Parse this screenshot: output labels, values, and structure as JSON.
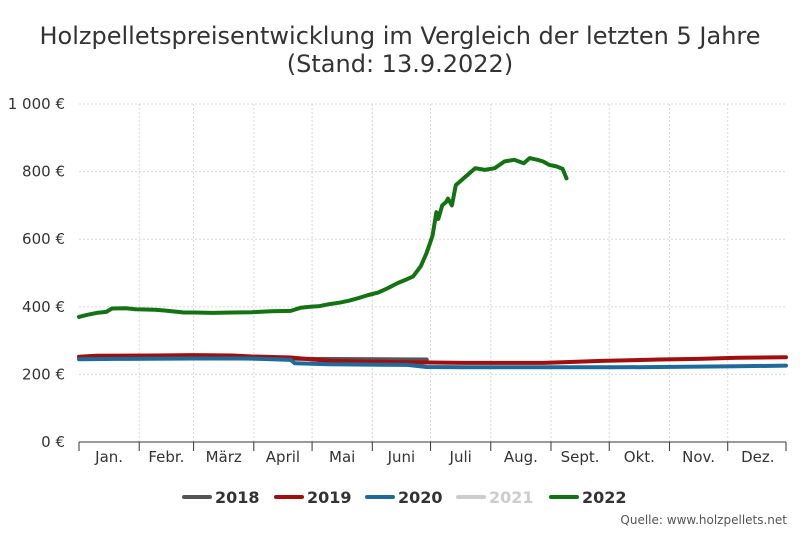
{
  "title_line1": "Holzpelletspreisentwicklung im Vergleich der letzten 5 Jahre",
  "title_line2": "(Stand: 13.9.2022)",
  "source": "Quelle: www.holzpellets.net",
  "chart_data": {
    "type": "line",
    "title": "Holzpelletspreisentwicklung im Vergleich der letzten 5 Jahre (Stand: 13.9.2022)",
    "xlabel": "",
    "ylabel": "",
    "x_type": "day_of_year",
    "xlim": [
      1,
      365
    ],
    "ylim": [
      0,
      1000
    ],
    "yticks": [
      0,
      200,
      400,
      600,
      800,
      1000
    ],
    "ytick_labels": [
      "0 €",
      "200 €",
      "400 €",
      "600 €",
      "800 €",
      "1 000 €"
    ],
    "months": [
      "Jan.",
      "Febr.",
      "März",
      "April",
      "Mai",
      "Juni",
      "Juli",
      "Aug.",
      "Sept.",
      "Okt.",
      "Nov.",
      "Dez."
    ],
    "month_starts": [
      1,
      32,
      60,
      91,
      121,
      152,
      182,
      213,
      244,
      274,
      305,
      335
    ],
    "grid": true,
    "legend_position": "bottom",
    "series": [
      {
        "name": "2018",
        "color": "#555555",
        "hidden": false,
        "x": [
          1,
          60,
          120,
          180
        ],
        "y": [
          248,
          248,
          246,
          244
        ]
      },
      {
        "name": "2019",
        "color": "#a00e0e",
        "hidden": false,
        "x": [
          1,
          10,
          40,
          60,
          80,
          90,
          110,
          120,
          130,
          150,
          170,
          200,
          220,
          240,
          250,
          270,
          300,
          320,
          340,
          365
        ],
        "y": [
          252,
          255,
          256,
          257,
          256,
          253,
          250,
          245,
          240,
          238,
          236,
          234,
          234,
          234,
          236,
          240,
          244,
          246,
          249,
          251
        ]
      },
      {
        "name": "2020",
        "color": "#1e6a9a",
        "hidden": false,
        "x": [
          1,
          20,
          60,
          90,
          110,
          112,
          130,
          150,
          170,
          180,
          200,
          240,
          260,
          280,
          300,
          320,
          340,
          365
        ],
        "y": [
          245,
          246,
          247,
          247,
          243,
          233,
          230,
          229,
          228,
          222,
          221,
          221,
          221,
          221,
          222,
          223,
          224,
          226
        ]
      },
      {
        "name": "2021",
        "color": "#cccccc",
        "hidden": true,
        "x": [],
        "y": []
      },
      {
        "name": "2022",
        "color": "#137313",
        "hidden": false,
        "x": [
          1,
          5,
          10,
          15,
          18,
          25,
          30,
          40,
          45,
          50,
          55,
          60,
          70,
          80,
          90,
          100,
          110,
          115,
          120,
          125,
          130,
          135,
          140,
          145,
          150,
          155,
          160,
          165,
          170,
          173,
          177,
          180,
          183,
          185,
          186,
          188,
          190,
          191,
          193,
          195,
          197,
          200,
          203,
          205,
          210,
          215,
          220,
          225,
          230,
          233,
          237,
          240,
          243,
          247,
          250,
          252
        ],
        "y": [
          370,
          376,
          382,
          385,
          395,
          396,
          393,
          391,
          389,
          386,
          383,
          383,
          382,
          383,
          384,
          387,
          388,
          397,
          400,
          402,
          408,
          412,
          418,
          426,
          435,
          442,
          455,
          470,
          482,
          490,
          520,
          560,
          610,
          680,
          660,
          700,
          710,
          720,
          700,
          760,
          770,
          785,
          800,
          810,
          805,
          810,
          830,
          835,
          825,
          840,
          835,
          830,
          820,
          815,
          808,
          780
        ]
      }
    ]
  }
}
